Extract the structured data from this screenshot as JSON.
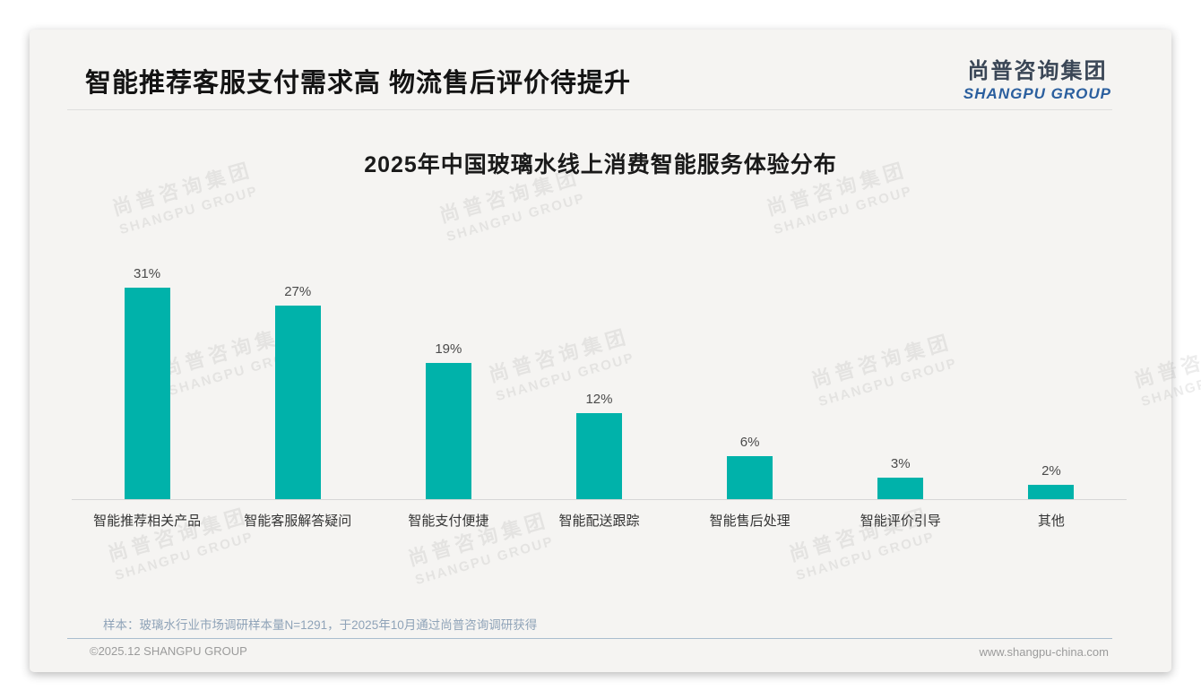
{
  "page": {
    "title": "智能推荐客服支付需求高 物流售后评价待提升",
    "logo": {
      "cn": "尚普咨询集团",
      "en": "SHANGPU GROUP"
    },
    "watermark": {
      "cn": "尚普咨询集团",
      "en": "SHANGPU GROUP"
    },
    "footer": {
      "note": "样本：玻璃水行业市场调研样本量N=1291，于2025年10月通过尚普咨询调研获得",
      "copyright": "©2025.12 SHANGPU GROUP",
      "website": "www.shangpu-china.com"
    }
  },
  "chart_data": {
    "type": "bar",
    "title": "2025年中国玻璃水线上消费智能服务体验分布",
    "categories": [
      "智能推荐相关产品",
      "智能客服解答疑问",
      "智能支付便捷",
      "智能配送跟踪",
      "智能售后处理",
      "智能评价引导",
      "其他"
    ],
    "values": [
      31,
      27,
      19,
      12,
      6,
      3,
      2
    ],
    "data_labels": [
      "31%",
      "27%",
      "19%",
      "12%",
      "6%",
      "3%",
      "2%"
    ],
    "unit": "%",
    "ylim": [
      0,
      32.5
    ],
    "bar_color": "#00b2aa",
    "grid": false,
    "legend": "none",
    "xlabel": "",
    "ylabel": ""
  }
}
